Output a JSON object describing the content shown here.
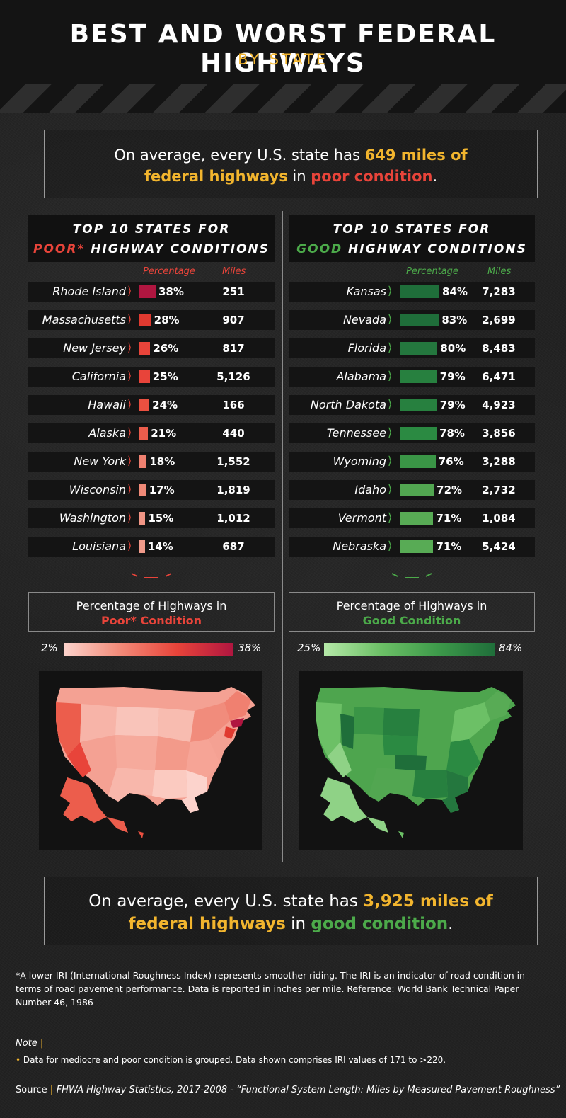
{
  "header": {
    "title": "BEST AND WORST FEDERAL HIGHWAYS",
    "subtitle": "BY STATE"
  },
  "top_callout": {
    "t1": "On average, every U.S. state has ",
    "t2": "649 miles of",
    "t3": "federal highways",
    "t4": " in ",
    "t5": "poor condition",
    "t6": "."
  },
  "bottom_callout": {
    "t1": "On average, every U.S. state has ",
    "t2": "3,925 miles of",
    "t3": "federal highways",
    "t4": " in ",
    "t5": "good condition",
    "t6": "."
  },
  "poor_panel": {
    "head_line1": "TOP 10 STATES FOR",
    "head_accent": "POOR*",
    "head_rest": " HIGHWAY CONDITIONS",
    "col_pct": "Percentage",
    "col_miles": "Miles",
    "legend_line1": "Percentage of Highways in",
    "legend_line2": "Poor* Condition",
    "scale_min": "2%",
    "scale_max": "38%"
  },
  "good_panel": {
    "head_line1": "TOP 10 STATES FOR",
    "head_accent": "GOOD",
    "head_rest": " HIGHWAY CONDITIONS",
    "col_pct": "Percentage",
    "col_miles": "Miles",
    "legend_line1": "Percentage of Highways in",
    "legend_line2": "Good Condition",
    "scale_min": "25%",
    "scale_max": "84%"
  },
  "colors": {
    "accent_yellow": "#f2b52e",
    "poor_red": "#e8443a",
    "good_green": "#4caa4a"
  },
  "chart_data": [
    {
      "type": "bar",
      "title": "TOP 10 STATES FOR POOR* HIGHWAY CONDITIONS",
      "categories": [
        "Rhode Island",
        "Massachusetts",
        "New Jersey",
        "California",
        "Hawaii",
        "Alaska",
        "New York",
        "Wisconsin",
        "Washington",
        "Louisiana"
      ],
      "series": [
        {
          "name": "Percentage",
          "values": [
            38,
            28,
            26,
            25,
            24,
            21,
            18,
            17,
            15,
            14
          ],
          "labels": [
            "38%",
            "28%",
            "26%",
            "25%",
            "24%",
            "21%",
            "18%",
            "17%",
            "15%",
            "14%"
          ]
        },
        {
          "name": "Miles",
          "values": [
            251,
            907,
            817,
            5126,
            166,
            440,
            1552,
            1819,
            1012,
            687
          ],
          "labels": [
            "251",
            "907",
            "817",
            "5,126",
            "166",
            "440",
            "1,552",
            "1,819",
            "1,012",
            "687"
          ]
        }
      ],
      "bar_colors": [
        "#b01640",
        "#e03a30",
        "#e8443a",
        "#e8443a",
        "#ea5040",
        "#ec5d4c",
        "#ef8070",
        "#f08a78",
        "#f09585",
        "#f09a8a"
      ]
    },
    {
      "type": "bar",
      "title": "TOP 10 STATES FOR GOOD HIGHWAY CONDITIONS",
      "categories": [
        "Kansas",
        "Nevada",
        "Florida",
        "Alabama",
        "North Dakota",
        "Tennessee",
        "Wyoming",
        "Idaho",
        "Vermont",
        "Nebraska"
      ],
      "series": [
        {
          "name": "Percentage",
          "values": [
            84,
            83,
            80,
            79,
            79,
            78,
            76,
            72,
            71,
            71
          ],
          "labels": [
            "84%",
            "83%",
            "80%",
            "79%",
            "79%",
            "78%",
            "76%",
            "72%",
            "71%",
            "71%"
          ]
        },
        {
          "name": "Miles",
          "values": [
            7283,
            2699,
            8483,
            6471,
            4923,
            3856,
            3288,
            2732,
            1084,
            5424
          ],
          "labels": [
            "7,283",
            "2,699",
            "8,483",
            "6,471",
            "4,923",
            "3,856",
            "3,288",
            "2,732",
            "1,084",
            "5,424"
          ]
        }
      ],
      "bar_colors": [
        "#1f6e3a",
        "#1f6e3a",
        "#24773e",
        "#27803f",
        "#27803f",
        "#2b8a42",
        "#3a9546",
        "#52a651",
        "#58ab55",
        "#58ab55"
      ]
    }
  ],
  "footnote": "*A lower IRI (International Roughness Index) represents smoother riding. The IRI is an indicator of road condition in terms of road pavement performance. Data is reported in inches per mile. Reference: World Bank Technical Paper Number 46, 1986",
  "note": {
    "label": "Note",
    "text": "Data for mediocre and poor condition is grouped. Data shown comprises IRI values of 171 to >220."
  },
  "source": {
    "label": "Source",
    "text": "FHWA Highway Statistics, 2017-2008 - “Functional System Length: Miles by Measured Pavement Roughness”"
  }
}
